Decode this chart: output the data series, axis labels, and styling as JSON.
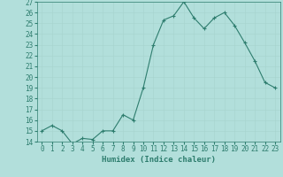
{
  "xlabel": "Humidex (Indice chaleur)",
  "ylabel": "",
  "x": [
    0,
    1,
    2,
    3,
    4,
    5,
    6,
    7,
    8,
    9,
    10,
    11,
    12,
    13,
    14,
    15,
    16,
    17,
    18,
    19,
    20,
    21,
    22,
    23
  ],
  "y": [
    15.0,
    15.5,
    15.0,
    13.8,
    14.3,
    14.2,
    15.0,
    15.0,
    16.5,
    16.0,
    19.0,
    23.0,
    25.3,
    25.7,
    27.0,
    25.5,
    24.5,
    25.5,
    26.0,
    24.8,
    23.2,
    21.5,
    19.5,
    19.0
  ],
  "ylim": [
    14,
    27
  ],
  "yticks": [
    14,
    15,
    16,
    17,
    18,
    19,
    20,
    21,
    22,
    23,
    24,
    25,
    26,
    27
  ],
  "xticks": [
    0,
    1,
    2,
    3,
    4,
    5,
    6,
    7,
    8,
    9,
    10,
    11,
    12,
    13,
    14,
    15,
    16,
    17,
    18,
    19,
    20,
    21,
    22,
    23
  ],
  "line_color": "#2e7d6e",
  "marker": "+",
  "bg_color": "#b2dfdb",
  "grid_color": "#a8d5d0",
  "xlabel_fontsize": 6.5,
  "tick_fontsize": 5.5
}
